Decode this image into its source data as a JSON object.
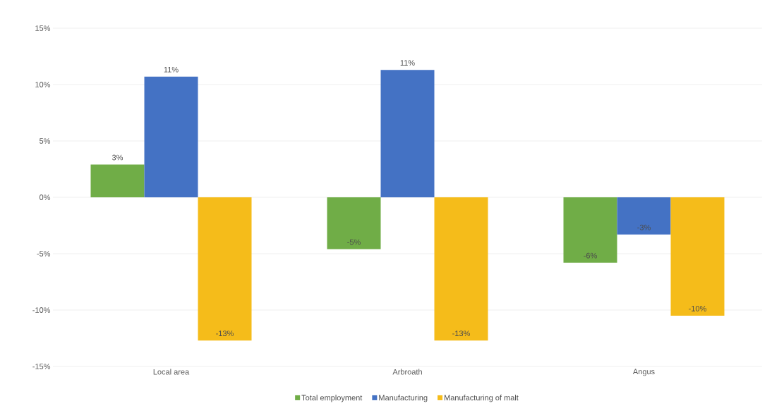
{
  "chart_data": {
    "type": "bar",
    "categories": [
      "Local area",
      "Arbroath",
      "Angus"
    ],
    "series": [
      {
        "name": "Total employment",
        "color": "#70ad47",
        "values": [
          2.9,
          -4.6,
          -5.8
        ],
        "value_labels": [
          "3%",
          "-5%",
          "-6%"
        ]
      },
      {
        "name": "Manufacturing",
        "color": "#4472c4",
        "values": [
          10.7,
          11.3,
          -3.3
        ],
        "value_labels": [
          "11%",
          "11%",
          "-3%"
        ]
      },
      {
        "name": "Manufacturing of malt",
        "color": "#f5bc1a",
        "values": [
          -12.7,
          -12.7,
          -10.5
        ],
        "value_labels": [
          "-13%",
          "-13%",
          "-10%"
        ]
      }
    ],
    "ylim": [
      -15,
      15
    ],
    "yticks": [
      {
        "value": -15,
        "label": "-15%"
      },
      {
        "value": -10,
        "label": "-10%"
      },
      {
        "value": -5,
        "label": "-5%"
      },
      {
        "value": 0,
        "label": "0%"
      },
      {
        "value": 5,
        "label": "5%"
      },
      {
        "value": 10,
        "label": "10%"
      },
      {
        "value": 15,
        "label": "15%"
      }
    ],
    "grid": "y",
    "legend": "bottom"
  }
}
